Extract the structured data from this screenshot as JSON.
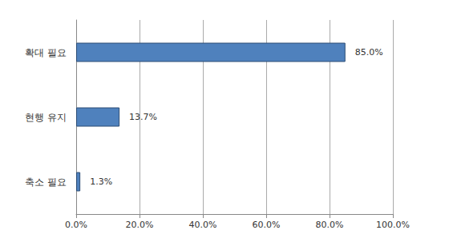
{
  "chart_data": {
    "type": "bar",
    "orientation": "horizontal",
    "categories": [
      "확대 필요",
      "현행 유지",
      "축소 필요"
    ],
    "values": [
      85.0,
      13.7,
      1.3
    ],
    "value_labels": [
      "85.0%",
      "13.7%",
      "1.3%"
    ],
    "data_labels": true,
    "color": "#4f81bd",
    "xlim": [
      0,
      100
    ],
    "xticks": [
      {
        "value": 0,
        "label": "0.0%"
      },
      {
        "value": 20,
        "label": "20.0%"
      },
      {
        "value": 40,
        "label": "40.0%"
      },
      {
        "value": 60,
        "label": "60.0%"
      },
      {
        "value": 80,
        "label": "80.0%"
      },
      {
        "value": 100,
        "label": "100.0%"
      }
    ],
    "grid": true
  }
}
